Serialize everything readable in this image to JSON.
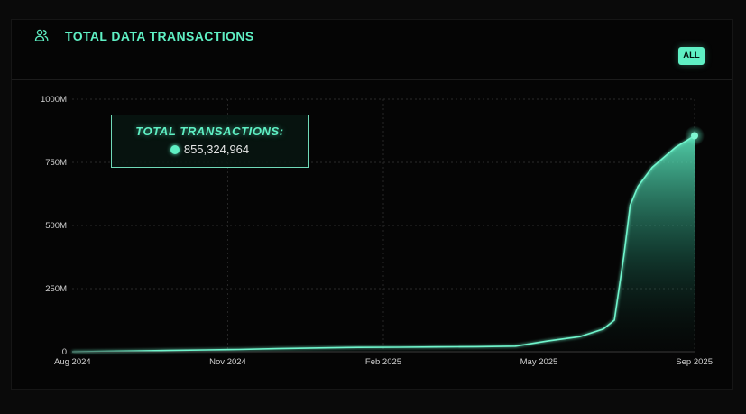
{
  "header": {
    "title": "TOTAL DATA TRANSACTIONS",
    "icon": "users-icon",
    "filter_label": "ALL"
  },
  "tooltip": {
    "title": "TOTAL TRANSACTIONS:",
    "value": "855,324,964"
  },
  "colors": {
    "accent": "#5ff0c4",
    "background": "#050505",
    "grid": "#2a2a2a"
  },
  "chart_data": {
    "type": "area",
    "title": "",
    "xlabel": "",
    "ylabel": "",
    "x_tick_labels": [
      "Aug 2024",
      "Nov 2024",
      "Feb 2025",
      "May 2025",
      "Sep 2025"
    ],
    "y_tick_labels": [
      "0",
      "250M",
      "500M",
      "750M",
      "1000M"
    ],
    "y_ticks": [
      0,
      250000000,
      500000000,
      750000000,
      1000000000
    ],
    "ylim": [
      0,
      1000000000
    ],
    "grid": true,
    "series": [
      {
        "x": [
          "2024-08-01",
          "2024-08-20",
          "2024-09-10",
          "2024-10-01",
          "2024-10-25",
          "2024-11-15",
          "2024-12-10",
          "2025-01-05",
          "2025-01-30",
          "2025-02-25",
          "2025-03-20",
          "2025-04-15",
          "2025-05-10",
          "2025-05-30",
          "2025-06-20",
          "2025-07-05",
          "2025-07-12",
          "2025-07-18",
          "2025-07-22",
          "2025-07-27",
          "2025-08-05",
          "2025-08-20",
          "2025-09-01"
        ],
        "y": [
          0,
          1000000,
          3000000,
          5000000,
          7000000,
          9000000,
          12000000,
          15000000,
          17000000,
          18000000,
          19000000,
          20000000,
          22000000,
          42000000,
          60000000,
          90000000,
          125000000,
          380000000,
          580000000,
          655000000,
          730000000,
          810000000,
          855324964
        ]
      }
    ]
  }
}
